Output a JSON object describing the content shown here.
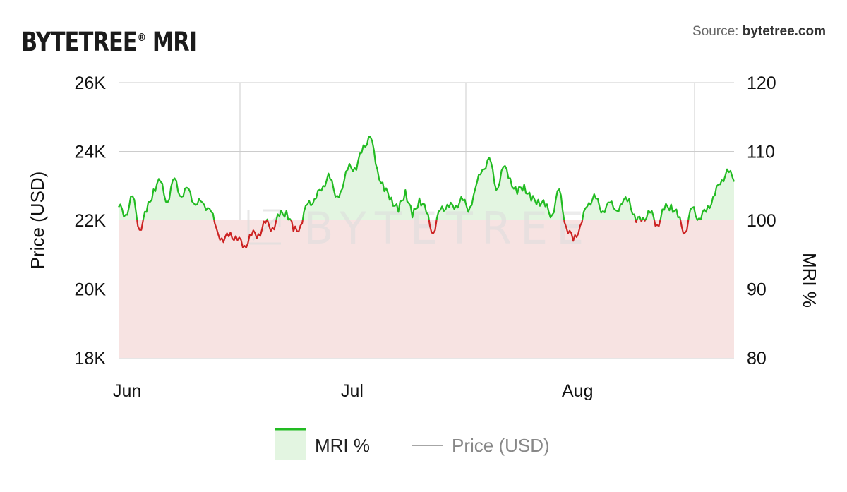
{
  "header": {
    "brand_name": "BYTETREE",
    "brand_mark": "®",
    "brand_suffix": " MRI",
    "source_label": "Source: ",
    "source_site": "bytetree.com"
  },
  "watermark": {
    "text": "BYTETREE"
  },
  "chart_data": {
    "type": "line",
    "x_ticks": [
      "Jun",
      "Jul",
      "Aug"
    ],
    "xlim": [
      "2022-06-01",
      "2022-08-28"
    ],
    "y_left": {
      "label": "Price (USD)",
      "ticks": [
        "18K",
        "20K",
        "22K",
        "24K",
        "26K"
      ],
      "tick_values": [
        18000,
        20000,
        22000,
        24000,
        26000
      ],
      "ylim": [
        18000,
        26000
      ]
    },
    "y_right": {
      "label": "MRI %",
      "ticks": [
        "80",
        "90",
        "100",
        "110",
        "120"
      ],
      "tick_values": [
        80,
        90,
        100,
        110,
        120
      ],
      "ylim": [
        80,
        120
      ]
    },
    "baseline": 100,
    "grid": true,
    "legend_position": "bottom",
    "colors": {
      "above_line": "#22bb22",
      "below_line": "#cc2222",
      "above_fill": "#e3f5e1",
      "below_fill": "#f7e3e2",
      "grid": "#cccccc",
      "price_line": "#888888",
      "watermark": "#dddddd"
    },
    "series": [
      {
        "name": "MRI %",
        "axis": "right",
        "points": [
          [
            "2022-06-01",
            101.9
          ],
          [
            "2022-06-02",
            100.8
          ],
          [
            "2022-06-03",
            103.5
          ],
          [
            "2022-06-04",
            98.6
          ],
          [
            "2022-06-05",
            101.2
          ],
          [
            "2022-06-06",
            104.5
          ],
          [
            "2022-06-07",
            105.6
          ],
          [
            "2022-06-08",
            102.6
          ],
          [
            "2022-06-09",
            106.1
          ],
          [
            "2022-06-10",
            103.4
          ],
          [
            "2022-06-11",
            104.6
          ],
          [
            "2022-06-12",
            102.2
          ],
          [
            "2022-06-13",
            102.6
          ],
          [
            "2022-06-14",
            101.7
          ],
          [
            "2022-06-15",
            98.8
          ],
          [
            "2022-06-16",
            96.8
          ],
          [
            "2022-06-17",
            98.2
          ],
          [
            "2022-06-18",
            97.1
          ],
          [
            "2022-06-19",
            96.3
          ],
          [
            "2022-06-20",
            97.8
          ],
          [
            "2022-06-21",
            98.0
          ],
          [
            "2022-06-22",
            99.6
          ],
          [
            "2022-06-23",
            98.9
          ],
          [
            "2022-06-24",
            100.6
          ],
          [
            "2022-06-25",
            101.4
          ],
          [
            "2022-06-26",
            98.4
          ],
          [
            "2022-06-27",
            99.2
          ],
          [
            "2022-06-28",
            102.3
          ],
          [
            "2022-06-29",
            103.1
          ],
          [
            "2022-06-30",
            104.3
          ],
          [
            "2022-07-01",
            106.8
          ],
          [
            "2022-07-02",
            103.4
          ],
          [
            "2022-07-03",
            104.6
          ],
          [
            "2022-07-04",
            108.2
          ],
          [
            "2022-07-05",
            107.3
          ],
          [
            "2022-07-06",
            110.9
          ],
          [
            "2022-07-07",
            112.1
          ],
          [
            "2022-07-08",
            107.4
          ],
          [
            "2022-07-09",
            104.2
          ],
          [
            "2022-07-10",
            103.3
          ],
          [
            "2022-07-11",
            101.2
          ],
          [
            "2022-07-12",
            104.4
          ],
          [
            "2022-07-13",
            100.4
          ],
          [
            "2022-07-14",
            103.2
          ],
          [
            "2022-07-15",
            101.1
          ],
          [
            "2022-07-16",
            98.1
          ],
          [
            "2022-07-17",
            101.5
          ],
          [
            "2022-07-18",
            102.3
          ],
          [
            "2022-07-19",
            101.6
          ],
          [
            "2022-07-20",
            103.4
          ],
          [
            "2022-07-21",
            101.2
          ],
          [
            "2022-07-22",
            104.6
          ],
          [
            "2022-07-23",
            107.3
          ],
          [
            "2022-07-24",
            109.1
          ],
          [
            "2022-07-25",
            104.4
          ],
          [
            "2022-07-26",
            107.7
          ],
          [
            "2022-07-27",
            106.1
          ],
          [
            "2022-07-28",
            103.8
          ],
          [
            "2022-07-29",
            105.2
          ],
          [
            "2022-07-30",
            102.8
          ],
          [
            "2022-07-31",
            103.0
          ],
          [
            "2022-08-01",
            102.0
          ],
          [
            "2022-08-02",
            100.8
          ],
          [
            "2022-08-03",
            104.5
          ],
          [
            "2022-08-04",
            99.0
          ],
          [
            "2022-08-05",
            97.0
          ],
          [
            "2022-08-06",
            99.2
          ],
          [
            "2022-08-07",
            102.0
          ],
          [
            "2022-08-08",
            103.8
          ],
          [
            "2022-08-09",
            101.1
          ],
          [
            "2022-08-10",
            102.6
          ],
          [
            "2022-08-11",
            101.5
          ],
          [
            "2022-08-12",
            102.4
          ],
          [
            "2022-08-13",
            103.1
          ],
          [
            "2022-08-14",
            99.7
          ],
          [
            "2022-08-15",
            100.4
          ],
          [
            "2022-08-16",
            101.1
          ],
          [
            "2022-08-17",
            99.3
          ],
          [
            "2022-08-18",
            101.5
          ],
          [
            "2022-08-19",
            102.3
          ],
          [
            "2022-08-20",
            100.4
          ],
          [
            "2022-08-21",
            98.2
          ],
          [
            "2022-08-22",
            101.8
          ],
          [
            "2022-08-23",
            100.3
          ],
          [
            "2022-08-24",
            101.2
          ],
          [
            "2022-08-25",
            103.4
          ],
          [
            "2022-08-26",
            105.2
          ],
          [
            "2022-08-27",
            107.4
          ],
          [
            "2022-08-28",
            105.6
          ]
        ]
      },
      {
        "name": "Price (USD)",
        "axis": "left",
        "points": []
      }
    ]
  }
}
